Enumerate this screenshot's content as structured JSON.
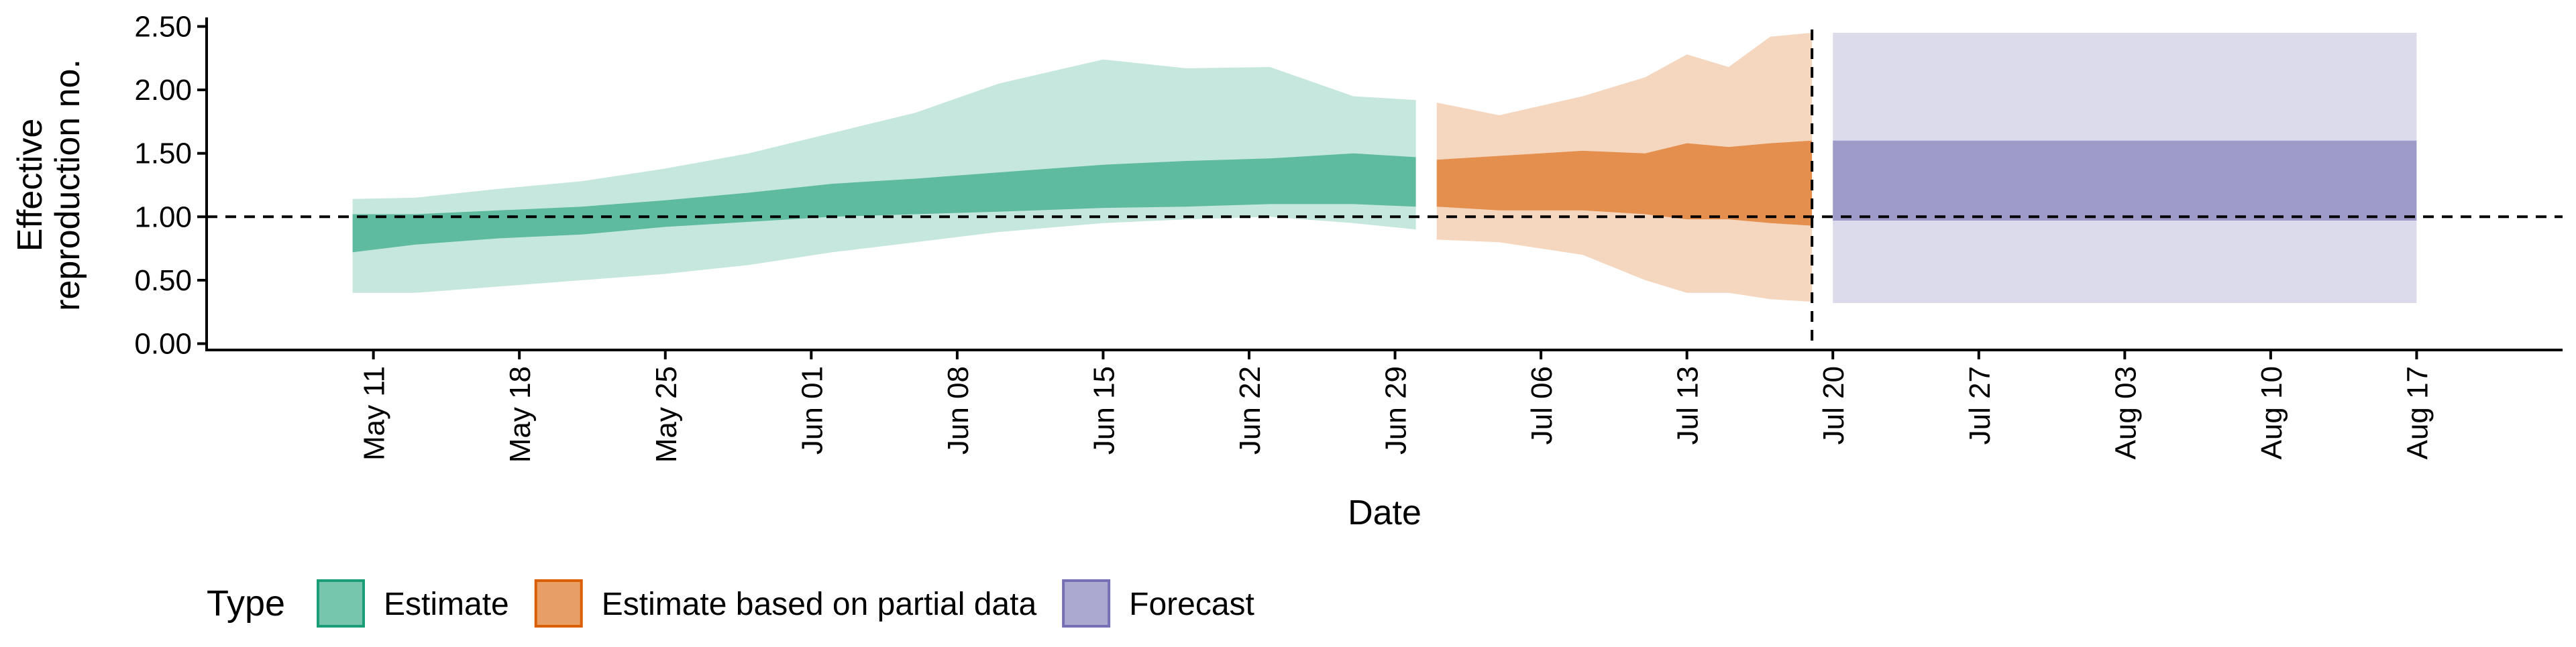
{
  "chart_data": {
    "type": "area",
    "xlabel": "Date",
    "ylabel": [
      "Effective",
      "reproduction no."
    ],
    "ylim": [
      -0.05,
      2.55
    ],
    "xlim": [
      "2020-05-03",
      "2020-08-24"
    ],
    "y_ticks": [
      "0.00",
      "0.50",
      "1.00",
      "1.50",
      "2.00",
      "2.50"
    ],
    "x_ticks": [
      "May 11",
      "May 18",
      "May 25",
      "Jun 01",
      "Jun 08",
      "Jun 15",
      "Jun 22",
      "Jun 29",
      "Jul 06",
      "Jul 13",
      "Jul 20",
      "Jul 27",
      "Aug 03",
      "Aug 10",
      "Aug 17"
    ],
    "x_tick_dates": [
      "2020-05-11",
      "2020-05-18",
      "2020-05-25",
      "2020-06-01",
      "2020-06-08",
      "2020-06-15",
      "2020-06-22",
      "2020-06-29",
      "2020-07-06",
      "2020-07-13",
      "2020-07-20",
      "2020-07-27",
      "2020-08-03",
      "2020-08-10",
      "2020-08-17"
    ],
    "reference_lines": {
      "horizontal_y": 1.0,
      "vertical_date": "2020-07-19"
    },
    "colors": {
      "Estimate": "#1b9e77",
      "Estimate based on partial data": "#d95f02",
      "Forecast": "#7570b3"
    },
    "legend": {
      "title": "Type",
      "entries": [
        "Estimate",
        "Estimate based on partial data",
        "Forecast"
      ],
      "placement": "bottom"
    },
    "series": [
      {
        "name": "Estimate",
        "points": [
          {
            "date": "2020-05-10",
            "lo90": 0.4,
            "lo50": 0.72,
            "hi50": 1.02,
            "hi90": 1.14
          },
          {
            "date": "2020-05-13",
            "lo90": 0.4,
            "lo50": 0.78,
            "hi50": 1.02,
            "hi90": 1.15
          },
          {
            "date": "2020-05-17",
            "lo90": 0.45,
            "lo50": 0.83,
            "hi50": 1.05,
            "hi90": 1.22
          },
          {
            "date": "2020-05-21",
            "lo90": 0.5,
            "lo50": 0.86,
            "hi50": 1.08,
            "hi90": 1.28
          },
          {
            "date": "2020-05-25",
            "lo90": 0.55,
            "lo50": 0.92,
            "hi50": 1.13,
            "hi90": 1.38
          },
          {
            "date": "2020-05-29",
            "lo90": 0.62,
            "lo50": 0.96,
            "hi50": 1.19,
            "hi90": 1.5
          },
          {
            "date": "2020-06-02",
            "lo90": 0.72,
            "lo50": 1.0,
            "hi50": 1.26,
            "hi90": 1.66
          },
          {
            "date": "2020-06-06",
            "lo90": 0.8,
            "lo50": 1.02,
            "hi50": 1.3,
            "hi90": 1.82
          },
          {
            "date": "2020-06-10",
            "lo90": 0.88,
            "lo50": 1.04,
            "hi50": 1.35,
            "hi90": 2.05
          },
          {
            "date": "2020-06-15",
            "lo90": 0.95,
            "lo50": 1.07,
            "hi50": 1.41,
            "hi90": 2.24
          },
          {
            "date": "2020-06-19",
            "lo90": 0.98,
            "lo50": 1.08,
            "hi50": 1.44,
            "hi90": 2.17
          },
          {
            "date": "2020-06-23",
            "lo90": 1.0,
            "lo50": 1.1,
            "hi50": 1.46,
            "hi90": 2.18
          },
          {
            "date": "2020-06-27",
            "lo90": 0.95,
            "lo50": 1.1,
            "hi50": 1.5,
            "hi90": 1.95
          },
          {
            "date": "2020-06-30",
            "lo90": 0.9,
            "lo50": 1.08,
            "hi50": 1.47,
            "hi90": 1.92
          }
        ]
      },
      {
        "name": "Estimate based on partial data",
        "points": [
          {
            "date": "2020-07-01",
            "lo90": 0.82,
            "lo50": 1.08,
            "hi50": 1.45,
            "hi90": 1.9
          },
          {
            "date": "2020-07-04",
            "lo90": 0.8,
            "lo50": 1.05,
            "hi50": 1.48,
            "hi90": 1.8
          },
          {
            "date": "2020-07-08",
            "lo90": 0.7,
            "lo50": 1.05,
            "hi50": 1.52,
            "hi90": 1.95
          },
          {
            "date": "2020-07-11",
            "lo90": 0.5,
            "lo50": 1.02,
            "hi50": 1.5,
            "hi90": 2.1
          },
          {
            "date": "2020-07-13",
            "lo90": 0.4,
            "lo50": 0.98,
            "hi50": 1.58,
            "hi90": 2.28
          },
          {
            "date": "2020-07-15",
            "lo90": 0.4,
            "lo50": 0.98,
            "hi50": 1.55,
            "hi90": 2.18
          },
          {
            "date": "2020-07-17",
            "lo90": 0.35,
            "lo50": 0.95,
            "hi50": 1.58,
            "hi90": 2.42
          },
          {
            "date": "2020-07-19",
            "lo90": 0.33,
            "lo50": 0.93,
            "hi50": 1.6,
            "hi90": 2.45
          }
        ]
      },
      {
        "name": "Forecast",
        "points": [
          {
            "date": "2020-07-20",
            "lo90": 0.32,
            "lo50": 0.97,
            "hi50": 1.6,
            "hi90": 2.45
          },
          {
            "date": "2020-08-17",
            "lo90": 0.32,
            "lo50": 0.97,
            "hi50": 1.6,
            "hi90": 2.45
          }
        ]
      }
    ]
  }
}
